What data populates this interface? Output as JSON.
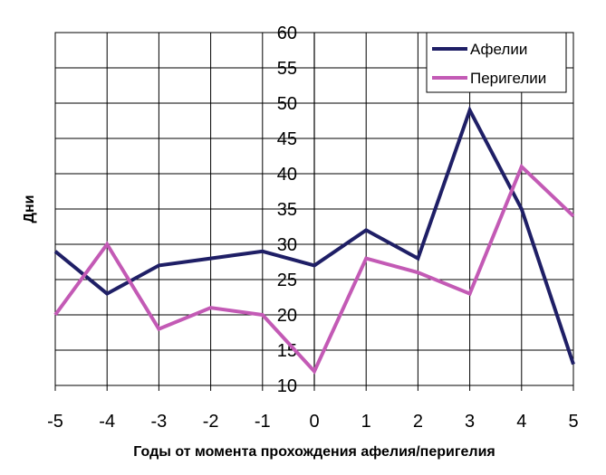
{
  "chart_data": {
    "type": "line",
    "title": "",
    "xlabel": "Годы от момента прохождения афелия/перигелия",
    "ylabel": "Дни",
    "x": [
      -5,
      -4,
      -3,
      -2,
      -1,
      0,
      1,
      2,
      3,
      4,
      5
    ],
    "x_ticks": [
      "-5",
      "-4",
      "-3",
      "-2",
      "-1",
      "0",
      "1",
      "2",
      "3",
      "4",
      "5"
    ],
    "y_ticks": [
      "10",
      "15",
      "20",
      "25",
      "30",
      "35",
      "40",
      "45",
      "50",
      "55",
      "60"
    ],
    "xlim": [
      -5,
      5
    ],
    "ylim": [
      10,
      60
    ],
    "grid": true,
    "legend_position": "top-right",
    "series": [
      {
        "name": "Афелии",
        "color": "#1f1f66",
        "values": [
          29,
          23,
          27,
          28,
          29,
          27,
          32,
          28,
          49,
          35,
          13
        ]
      },
      {
        "name": "Перигелии",
        "color": "#c35ab5",
        "values": [
          20,
          30,
          18,
          21,
          20,
          12,
          28,
          26,
          23,
          41,
          34
        ]
      }
    ]
  }
}
